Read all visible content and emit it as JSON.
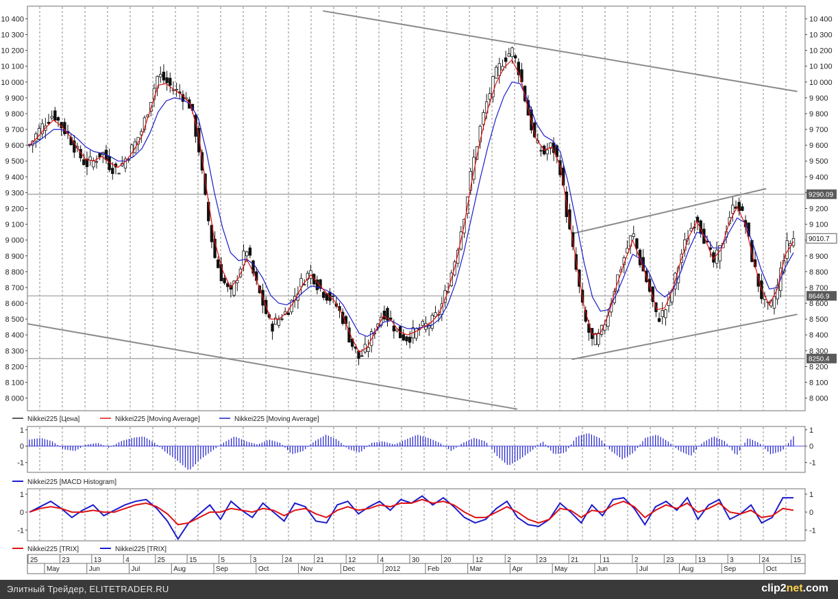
{
  "chart_data": {
    "type": "candlestick",
    "main_panel": {
      "yticks": [
        8000,
        8100,
        8200,
        8300,
        8400,
        8500,
        8600,
        8700,
        8800,
        8900,
        9000,
        9100,
        9200,
        9300,
        9400,
        9500,
        9600,
        9700,
        9800,
        9900,
        10000,
        10100,
        10200,
        10300,
        10400
      ],
      "ylim": [
        7920,
        10480
      ],
      "horizontal_levels": [
        {
          "value": 9290,
          "label": "9290.09"
        },
        {
          "value": 8646.9,
          "label": "8646.9"
        },
        {
          "value": 8250.4,
          "label": "8250.4"
        }
      ],
      "last_price": {
        "value": 9010.7,
        "label": "9010.7"
      },
      "trendlines": [
        {
          "from": [
            0.38,
            10450
          ],
          "to": [
            0.99,
            9940
          ]
        },
        {
          "from": [
            0.0,
            8470
          ],
          "to": [
            0.63,
            7930
          ]
        },
        {
          "from": [
            0.7,
            9040
          ],
          "to": [
            0.95,
            9325
          ]
        },
        {
          "from": [
            0.7,
            8245
          ],
          "to": [
            0.99,
            8530
          ]
        }
      ],
      "legend": [
        {
          "label": "Nikkei225 [Цена]",
          "color": "#222222"
        },
        {
          "label": "Nikkei225 [Moving Average]",
          "color": "#e01010"
        },
        {
          "label": "Nikkei225 [Moving Average]",
          "color": "#1a1acc"
        }
      ],
      "series": {
        "price": [
          9600,
          9680,
          9750,
          9800,
          9720,
          9650,
          9550,
          9480,
          9500,
          9560,
          9470,
          9440,
          9520,
          9600,
          9700,
          9880,
          10050,
          10000,
          9950,
          9920,
          9850,
          9600,
          9200,
          8900,
          8750,
          8650,
          8800,
          8950,
          8750,
          8600,
          8450,
          8500,
          8550,
          8650,
          8750,
          8800,
          8700,
          8650,
          8600,
          8500,
          8350,
          8250,
          8320,
          8450,
          8550,
          8480,
          8400,
          8380,
          8420,
          8450,
          8480,
          8550,
          8700,
          8900,
          9150,
          9450,
          9700,
          9900,
          10050,
          10150,
          10200,
          10050,
          9800,
          9600,
          9550,
          9600,
          9450,
          9100,
          8800,
          8500,
          8350,
          8400,
          8550,
          8750,
          8900,
          9050,
          8850,
          8700,
          8500,
          8550,
          8700,
          8900,
          9050,
          9150,
          9000,
          8850,
          8950,
          9150,
          9250,
          9100,
          8850,
          8650,
          8550,
          8700,
          8950,
          9010
        ],
        "ma_fast": [
          9600,
          9650,
          9710,
          9760,
          9720,
          9660,
          9580,
          9510,
          9500,
          9530,
          9490,
          9460,
          9500,
          9570,
          9660,
          9820,
          9980,
          9990,
          9950,
          9920,
          9860,
          9680,
          9330,
          9000,
          8810,
          8700,
          8760,
          8880,
          8780,
          8640,
          8500,
          8500,
          8540,
          8620,
          8720,
          8780,
          8720,
          8660,
          8610,
          8520,
          8390,
          8290,
          8320,
          8420,
          8520,
          8490,
          8420,
          8400,
          8420,
          8450,
          8480,
          8540,
          8670,
          8850,
          9080,
          9370,
          9620,
          9830,
          9990,
          10090,
          10140,
          10040,
          9830,
          9640,
          9570,
          9590,
          9470,
          9170,
          8860,
          8570,
          8400,
          8410,
          8530,
          8710,
          8860,
          9000,
          8870,
          8730,
          8560,
          8570,
          8690,
          8870,
          9020,
          9120,
          9010,
          8880,
          8940,
          9110,
          9210,
          9100,
          8880,
          8690,
          8590,
          8690,
          8910,
          8990
        ],
        "ma_slow": [
          9600,
          9620,
          9660,
          9700,
          9700,
          9680,
          9640,
          9590,
          9560,
          9550,
          9530,
          9500,
          9500,
          9530,
          9580,
          9680,
          9810,
          9880,
          9900,
          9890,
          9860,
          9770,
          9560,
          9300,
          9080,
          8920,
          8870,
          8880,
          8840,
          8760,
          8650,
          8600,
          8590,
          8620,
          8670,
          8710,
          8700,
          8680,
          8650,
          8590,
          8500,
          8410,
          8390,
          8420,
          8480,
          8490,
          8460,
          8440,
          8440,
          8450,
          8460,
          8500,
          8590,
          8730,
          8920,
          9150,
          9380,
          9590,
          9770,
          9910,
          10000,
          9990,
          9880,
          9740,
          9660,
          9630,
          9560,
          9360,
          9110,
          8850,
          8640,
          8550,
          8560,
          8660,
          8780,
          8910,
          8880,
          8800,
          8680,
          8640,
          8680,
          8800,
          8940,
          9050,
          9030,
          8950,
          8950,
          9050,
          9140,
          9110,
          8970,
          8810,
          8690,
          8700,
          8830,
          8920
        ]
      }
    },
    "macd_panel": {
      "yticks": [
        -1,
        0,
        1
      ],
      "ylim": [
        -1.6,
        1.2
      ],
      "legend": [
        {
          "label": "Nikkei225 [MACD Histogram]",
          "color": "#1a1acc"
        }
      ],
      "values": [
        0.4,
        0.5,
        0.3,
        -0.2,
        -0.3,
        0.1,
        0.2,
        -0.1,
        0.3,
        0.5,
        0.6,
        0.2,
        -0.4,
        -0.9,
        -1.5,
        -0.8,
        -0.3,
        0.2,
        0.6,
        0.3,
        0.1,
        0.4,
        0.2,
        -0.5,
        -0.3,
        0.3,
        0.7,
        0.4,
        -0.2,
        -0.4,
        0.2,
        0.3,
        0.1,
        0.4,
        0.7,
        0.5,
        0.2,
        -0.3,
        0.2,
        0.5,
        0.3,
        -0.6,
        -1.2,
        -0.8,
        -0.3,
        0.3,
        -0.5,
        -0.4,
        0.6,
        0.8,
        0.5,
        -0.3,
        -0.8,
        -0.4,
        0.5,
        0.7,
        0.3,
        -0.3,
        -0.6,
        0.2,
        0.6,
        0.3,
        -0.6,
        0.5,
        0.2,
        -0.5,
        -0.3,
        0.6
      ]
    },
    "trix_panel": {
      "yticks": [
        -1,
        0,
        1
      ],
      "ylim": [
        -1.6,
        1.3
      ],
      "legend": [
        {
          "label": "Nikkei225 [TRIX]",
          "color": "#e01010"
        },
        {
          "label": "Nikkei225 [TRIX]",
          "color": "#1a1acc"
        }
      ],
      "fast": [
        0.0,
        0.3,
        0.6,
        0.2,
        -0.3,
        0.1,
        0.4,
        -0.2,
        0.1,
        0.4,
        0.6,
        0.7,
        0.2,
        -0.5,
        -1.5,
        -0.6,
        -0.1,
        0.4,
        -0.4,
        0.6,
        0.1,
        -0.3,
        0.5,
        0.0,
        -0.5,
        0.5,
        0.3,
        -0.5,
        -0.6,
        0.4,
        0.6,
        -0.1,
        0.3,
        0.6,
        0.1,
        0.7,
        0.5,
        0.9,
        0.4,
        0.8,
        0.3,
        -0.3,
        -0.6,
        -0.4,
        0.2,
        0.6,
        -0.3,
        -0.7,
        -0.8,
        -0.4,
        0.5,
        0.0,
        -0.6,
        0.4,
        -0.2,
        0.7,
        0.8,
        0.2,
        -0.7,
        0.3,
        0.6,
        0.1,
        0.8,
        -0.4,
        0.4,
        0.7,
        -0.4,
        -0.1,
        0.4,
        -0.6,
        -0.3,
        0.8,
        0.8
      ],
      "slow": [
        0.0,
        0.2,
        0.3,
        0.2,
        0.0,
        0.0,
        0.1,
        0.0,
        0.0,
        0.2,
        0.4,
        0.5,
        0.3,
        -0.1,
        -0.7,
        -0.6,
        -0.3,
        0.0,
        0.0,
        0.2,
        0.1,
        0.0,
        0.2,
        0.1,
        -0.2,
        0.1,
        0.2,
        -0.1,
        -0.3,
        0.1,
        0.3,
        0.1,
        0.2,
        0.4,
        0.3,
        0.5,
        0.5,
        0.7,
        0.5,
        0.6,
        0.4,
        0.0,
        -0.3,
        -0.3,
        0.0,
        0.3,
        0.0,
        -0.4,
        -0.6,
        -0.4,
        0.2,
        0.1,
        -0.3,
        0.1,
        0.0,
        0.4,
        0.6,
        0.3,
        -0.3,
        0.1,
        0.4,
        0.2,
        0.5,
        0.0,
        0.2,
        0.5,
        0.0,
        -0.1,
        0.1,
        -0.3,
        -0.2,
        0.2,
        0.1
      ]
    },
    "x_axis": {
      "day_ticks": [
        "25",
        "23",
        "13",
        "4",
        "25",
        "15",
        "5",
        "3",
        "24",
        "21",
        "12",
        "4",
        "30",
        "20",
        "12",
        "2",
        "23",
        "21",
        "11",
        "2",
        "23",
        "13",
        "3",
        "24",
        "15"
      ],
      "month_ticks": [
        "May",
        "Jun",
        "Jul",
        "Aug",
        "Sep",
        "Oct",
        "Nov",
        "Dec",
        "2012",
        "Feb",
        "Mar",
        "Apr",
        "May",
        "Jun",
        "Jul",
        "Aug",
        "Sep",
        "Oct"
      ]
    }
  },
  "footer": {
    "caption": "Элитный Трейдер, ELITETRADER.RU",
    "brand_main": "clip2",
    "brand_accent": "net",
    "brand_tail": ".com"
  }
}
